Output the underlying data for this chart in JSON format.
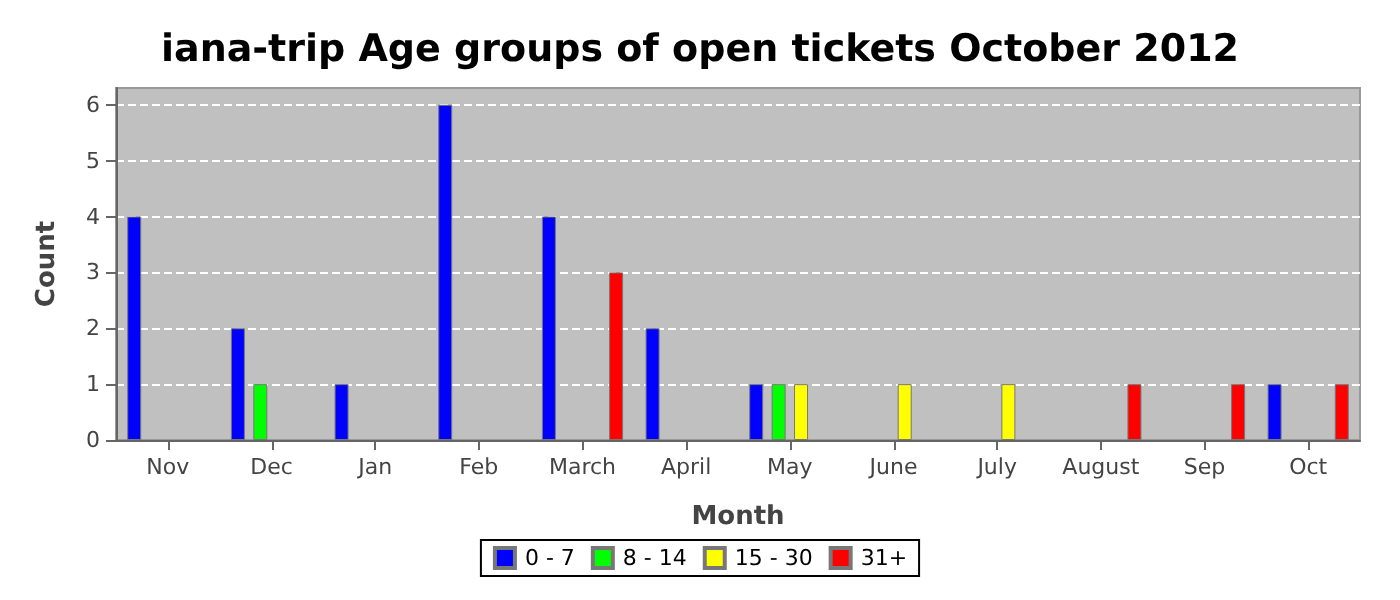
{
  "chart_data": {
    "type": "bar",
    "title": "iana-trip Age groups of open tickets October 2012",
    "xlabel": "Month",
    "ylabel": "Count",
    "categories": [
      "Nov",
      "Dec",
      "Jan",
      "Feb",
      "March",
      "April",
      "May",
      "June",
      "July",
      "August",
      "Sep",
      "Oct"
    ],
    "series": [
      {
        "name": "0 - 7",
        "color": "#0000ff",
        "values": [
          4,
          2,
          1,
          6,
          4,
          2,
          1,
          0,
          0,
          0,
          0,
          1
        ]
      },
      {
        "name": "8 - 14",
        "color": "#00ff00",
        "values": [
          0,
          1,
          0,
          0,
          0,
          0,
          1,
          0,
          0,
          0,
          0,
          0
        ]
      },
      {
        "name": "15 - 30",
        "color": "#ffff00",
        "values": [
          0,
          0,
          0,
          0,
          0,
          0,
          1,
          1,
          1,
          0,
          0,
          0
        ]
      },
      {
        "name": "31+",
        "color": "#ff0000",
        "values": [
          0,
          0,
          0,
          0,
          3,
          0,
          0,
          0,
          0,
          1,
          1,
          1
        ]
      }
    ],
    "ylim": [
      0,
      6.3
    ],
    "yticks": [
      0,
      1,
      2,
      3,
      4,
      5,
      6
    ],
    "grid": "y",
    "legend": "bottom"
  }
}
